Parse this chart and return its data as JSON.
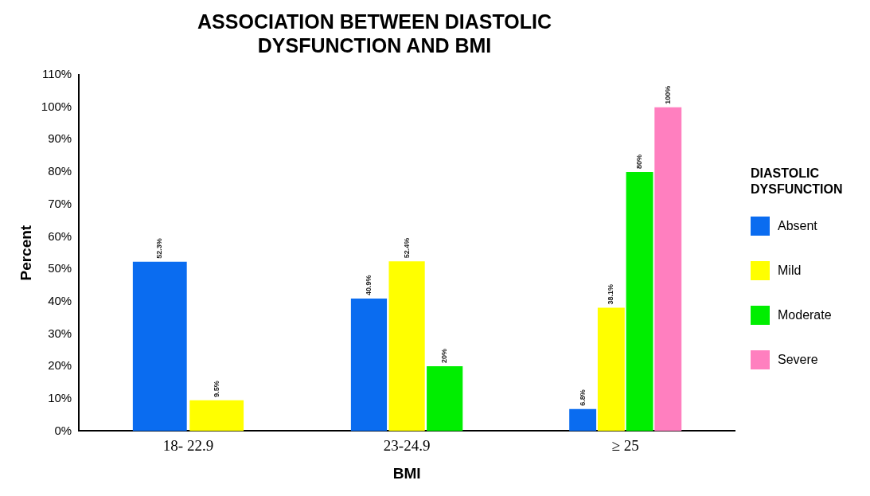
{
  "chart_data": {
    "type": "bar",
    "title": [
      "ASSOCIATION BETWEEN DIASTOLIC",
      "DYSFUNCTION AND BMI"
    ],
    "xlabel": "BMI",
    "ylabel": "Percent",
    "legend_title": "DIASTOLIC DYSFUNCTION",
    "legend": "right",
    "grid": false,
    "categories": [
      "18- 22.9",
      "23-24.9",
      "≥ 25"
    ],
    "ylim": [
      0,
      110
    ],
    "yticks": [
      {
        "value": 0,
        "label": "0%"
      },
      {
        "value": 10,
        "label": "10%"
      },
      {
        "value": 20,
        "label": "20%"
      },
      {
        "value": 30,
        "label": "30%"
      },
      {
        "value": 40,
        "label": "40%"
      },
      {
        "value": 50,
        "label": "50%"
      },
      {
        "value": 60,
        "label": "60%"
      },
      {
        "value": 70,
        "label": "70%"
      },
      {
        "value": 80,
        "label": "80%"
      },
      {
        "value": 90,
        "label": "90%"
      },
      {
        "value": 100,
        "label": "100%"
      },
      {
        "value": 110,
        "label": "110%"
      }
    ],
    "series": [
      {
        "name": "Absent",
        "color": "#0a6cf0",
        "values": [
          52.3,
          40.9,
          6.8
        ],
        "value_labels": [
          "52.3%",
          "40.9%",
          "6.8%"
        ]
      },
      {
        "name": "Mild",
        "color": "#ffff00",
        "values": [
          9.5,
          52.4,
          38.1
        ],
        "value_labels": [
          "9.5%",
          "52.4%",
          "38.1%"
        ]
      },
      {
        "name": "Moderate",
        "color": "#00ee00",
        "values": [
          null,
          20,
          80
        ],
        "value_labels": [
          null,
          "20%",
          "80%"
        ]
      },
      {
        "name": "Severe",
        "color": "#ff7fbf",
        "values": [
          null,
          null,
          100
        ],
        "value_labels": [
          null,
          null,
          "100%"
        ]
      }
    ]
  }
}
